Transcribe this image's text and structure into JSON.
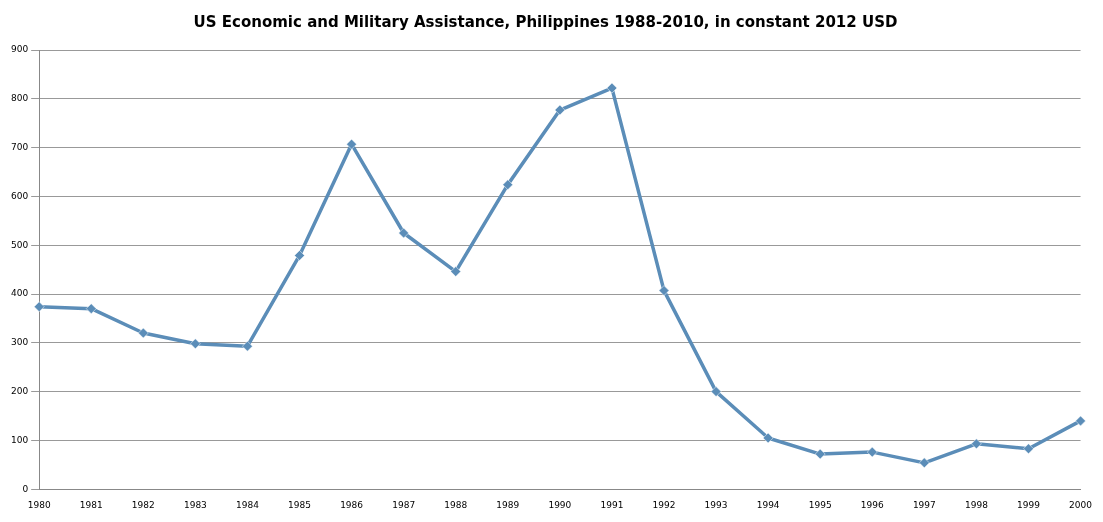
{
  "chart_data": {
    "type": "line",
    "title": "US Economic and Military Assistance, Philippines 1988-2010, in constant 2012 USD",
    "categories": [
      "1980",
      "1981",
      "1982",
      "1983",
      "1984",
      "1985",
      "1986",
      "1987",
      "1988",
      "1989",
      "1990",
      "1991",
      "1992",
      "1993",
      "1994",
      "1995",
      "1996",
      "1997",
      "1998",
      "1999",
      "2000"
    ],
    "series": [
      {
        "color": "#5b8db8",
        "values": [
          374,
          370,
          320,
          298,
          293,
          479,
          707,
          525,
          446,
          624,
          777,
          822,
          407,
          200,
          105,
          72,
          76,
          54,
          93,
          83,
          140
        ]
      }
    ],
    "ylim": [
      0,
      900
    ],
    "yticks": [
      0,
      100,
      200,
      300,
      400,
      500,
      600,
      700,
      800,
      900
    ],
    "grid": "y",
    "legend": false,
    "marker": "diamond",
    "line_style": "solid"
  }
}
